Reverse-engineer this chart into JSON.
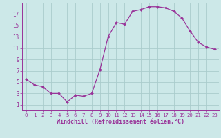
{
  "x": [
    0,
    1,
    2,
    3,
    4,
    5,
    6,
    7,
    8,
    9,
    10,
    11,
    12,
    13,
    14,
    15,
    16,
    17,
    18,
    19,
    20,
    21,
    22,
    23
  ],
  "y": [
    5.5,
    4.5,
    4.2,
    3.0,
    3.0,
    1.5,
    2.7,
    2.5,
    3.0,
    7.2,
    13.0,
    15.5,
    15.2,
    17.5,
    17.8,
    18.3,
    18.3,
    18.1,
    17.5,
    16.3,
    14.0,
    12.0,
    11.2,
    10.8
  ],
  "line_color": "#993399",
  "marker": "D",
  "marker_size": 2.0,
  "bg_color": "#cce8e8",
  "grid_color": "#aacccc",
  "xlabel": "Windchill (Refroidissement éolien,°C)",
  "xlim": [
    -0.5,
    23.5
  ],
  "ylim": [
    0.0,
    19.0
  ],
  "yticks": [
    1,
    3,
    5,
    7,
    9,
    11,
    13,
    15,
    17
  ],
  "xticks": [
    0,
    1,
    2,
    3,
    4,
    5,
    6,
    7,
    8,
    9,
    10,
    11,
    12,
    13,
    14,
    15,
    16,
    17,
    18,
    19,
    20,
    21,
    22,
    23
  ],
  "tick_color": "#993399",
  "label_color": "#993399",
  "axes_color": "#993399",
  "xlabel_fontsize": 6.0,
  "tick_fontsize_x": 5.2,
  "tick_fontsize_y": 5.5
}
